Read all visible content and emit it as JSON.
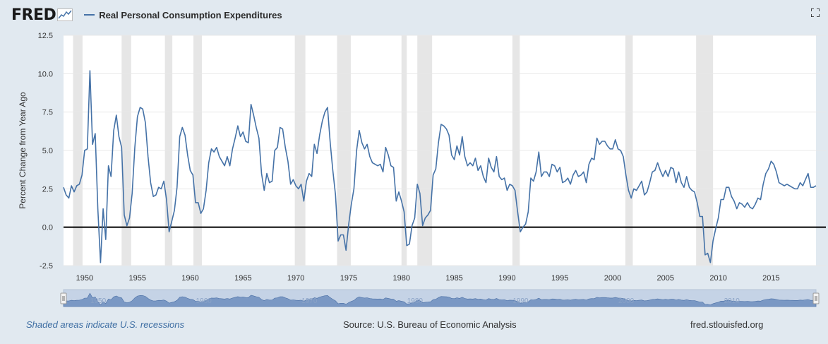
{
  "header": {
    "logo_text": "FRED",
    "series_name": "Real Personal Consumption Expenditures"
  },
  "footer": {
    "recession_note": "Shaded areas indicate U.S. recessions",
    "source": "Source: U.S. Bureau of Economic Analysis",
    "site": "fred.stlouisfed.org"
  },
  "colors": {
    "series": "#4572a7",
    "recession": "#e6e6e6",
    "zero_line": "#000000",
    "navigator": "#7a98c4",
    "navigator_bg": "#c5d3e6"
  },
  "icons": {
    "expand": "expand-icon",
    "logo_graph": "line-graph-icon"
  },
  "chart_data": {
    "type": "line",
    "title": "Real Personal Consumption Expenditures",
    "ylabel": "Percent Change from Year Ago",
    "xlabel": "",
    "xlim": [
      1948.0,
      2019.25
    ],
    "ylim": [
      -2.5,
      12.5
    ],
    "y_ticks": [
      -2.5,
      0.0,
      2.5,
      5.0,
      7.5,
      10.0,
      12.5
    ],
    "y_tick_labels": [
      "-2.5",
      "0.0",
      "2.5",
      "5.0",
      "7.5",
      "10.0",
      "12.5"
    ],
    "x_ticks": [
      1950,
      1955,
      1960,
      1965,
      1970,
      1975,
      1980,
      1985,
      1990,
      1995,
      2000,
      2005,
      2010,
      2015
    ],
    "x_tick_labels": [
      "1950",
      "1955",
      "1960",
      "1965",
      "1970",
      "1975",
      "1980",
      "1985",
      "1990",
      "1995",
      "2000",
      "2005",
      "2010",
      "2015"
    ],
    "navigator_labels": [
      "1950",
      "1960",
      "1970",
      "1980",
      "1990",
      "2000",
      "2010"
    ],
    "grid": "horizontal",
    "recessions": [
      [
        1948.9,
        1949.8
      ],
      [
        1953.5,
        1954.4
      ],
      [
        1957.6,
        1958.3
      ],
      [
        1960.3,
        1961.1
      ],
      [
        1969.9,
        1970.9
      ],
      [
        1973.9,
        1975.2
      ],
      [
        1980.0,
        1980.5
      ],
      [
        1981.5,
        1982.9
      ],
      [
        1990.5,
        1991.2
      ],
      [
        2001.2,
        2001.9
      ],
      [
        2007.9,
        2009.5
      ]
    ],
    "series": [
      {
        "name": "Real Personal Consumption Expenditures",
        "x": [
          1948.0,
          1948.25,
          1948.5,
          1948.75,
          1949.0,
          1949.25,
          1949.5,
          1949.75,
          1950.0,
          1950.25,
          1950.5,
          1950.75,
          1951.0,
          1951.25,
          1951.5,
          1951.75,
          1952.0,
          1952.25,
          1952.5,
          1952.75,
          1953.0,
          1953.25,
          1953.5,
          1953.75,
          1954.0,
          1954.25,
          1954.5,
          1954.75,
          1955.0,
          1955.25,
          1955.5,
          1955.75,
          1956.0,
          1956.25,
          1956.5,
          1956.75,
          1957.0,
          1957.25,
          1957.5,
          1957.75,
          1958.0,
          1958.25,
          1958.5,
          1958.75,
          1959.0,
          1959.25,
          1959.5,
          1959.75,
          1960.0,
          1960.25,
          1960.5,
          1960.75,
          1961.0,
          1961.25,
          1961.5,
          1961.75,
          1962.0,
          1962.25,
          1962.5,
          1962.75,
          1963.0,
          1963.25,
          1963.5,
          1963.75,
          1964.0,
          1964.25,
          1964.5,
          1964.75,
          1965.0,
          1965.25,
          1965.5,
          1965.75,
          1966.0,
          1966.25,
          1966.5,
          1966.75,
          1967.0,
          1967.25,
          1967.5,
          1967.75,
          1968.0,
          1968.25,
          1968.5,
          1968.75,
          1969.0,
          1969.25,
          1969.5,
          1969.75,
          1970.0,
          1970.25,
          1970.5,
          1970.75,
          1971.0,
          1971.25,
          1971.5,
          1971.75,
          1972.0,
          1972.25,
          1972.5,
          1972.75,
          1973.0,
          1973.25,
          1973.5,
          1973.75,
          1974.0,
          1974.25,
          1974.5,
          1974.75,
          1975.0,
          1975.25,
          1975.5,
          1975.75,
          1976.0,
          1976.25,
          1976.5,
          1976.75,
          1977.0,
          1977.25,
          1977.5,
          1977.75,
          1978.0,
          1978.25,
          1978.5,
          1978.75,
          1979.0,
          1979.25,
          1979.5,
          1979.75,
          1980.0,
          1980.25,
          1980.5,
          1980.75,
          1981.0,
          1981.25,
          1981.5,
          1981.75,
          1982.0,
          1982.25,
          1982.5,
          1982.75,
          1983.0,
          1983.25,
          1983.5,
          1983.75,
          1984.0,
          1984.25,
          1984.5,
          1984.75,
          1985.0,
          1985.25,
          1985.5,
          1985.75,
          1986.0,
          1986.25,
          1986.5,
          1986.75,
          1987.0,
          1987.25,
          1987.5,
          1987.75,
          1988.0,
          1988.25,
          1988.5,
          1988.75,
          1989.0,
          1989.25,
          1989.5,
          1989.75,
          1990.0,
          1990.25,
          1990.5,
          1990.75,
          1991.0,
          1991.25,
          1991.5,
          1991.75,
          1992.0,
          1992.25,
          1992.5,
          1992.75,
          1993.0,
          1993.25,
          1993.5,
          1993.75,
          1994.0,
          1994.25,
          1994.5,
          1994.75,
          1995.0,
          1995.25,
          1995.5,
          1995.75,
          1996.0,
          1996.25,
          1996.5,
          1996.75,
          1997.0,
          1997.25,
          1997.5,
          1997.75,
          1998.0,
          1998.25,
          1998.5,
          1998.75,
          1999.0,
          1999.25,
          1999.5,
          1999.75,
          2000.0,
          2000.25,
          2000.5,
          2000.75,
          2001.0,
          2001.25,
          2001.5,
          2001.75,
          2002.0,
          2002.25,
          2002.5,
          2002.75,
          2003.0,
          2003.25,
          2003.5,
          2003.75,
          2004.0,
          2004.25,
          2004.5,
          2004.75,
          2005.0,
          2005.25,
          2005.5,
          2005.75,
          2006.0,
          2006.25,
          2006.5,
          2006.75,
          2007.0,
          2007.25,
          2007.5,
          2007.75,
          2008.0,
          2008.25,
          2008.5,
          2008.75,
          2009.0,
          2009.25,
          2009.5,
          2009.75,
          2010.0,
          2010.25,
          2010.5,
          2010.75,
          2011.0,
          2011.25,
          2011.5,
          2011.75,
          2012.0,
          2012.25,
          2012.5,
          2012.75,
          2013.0,
          2013.25,
          2013.5,
          2013.75,
          2014.0,
          2014.25,
          2014.5,
          2014.75,
          2015.0,
          2015.25,
          2015.5,
          2015.75,
          2016.0,
          2016.25,
          2016.5,
          2016.75,
          2017.0,
          2017.25,
          2017.5,
          2017.75,
          2018.0,
          2018.25,
          2018.5,
          2018.75,
          2019.0,
          2019.25
        ],
        "values": [
          2.6,
          2.1,
          1.9,
          2.7,
          2.3,
          2.7,
          2.8,
          3.4,
          5.0,
          5.1,
          10.2,
          5.4,
          6.1,
          1.2,
          -2.3,
          1.2,
          -0.8,
          4.0,
          3.3,
          6.3,
          7.3,
          5.9,
          5.2,
          0.8,
          0.1,
          0.6,
          2.2,
          5.2,
          7.2,
          7.8,
          7.7,
          6.8,
          4.6,
          2.9,
          2.0,
          2.1,
          2.6,
          2.5,
          3.0,
          1.8,
          -0.3,
          0.4,
          1.1,
          2.6,
          5.9,
          6.5,
          6.0,
          4.7,
          3.7,
          3.4,
          1.6,
          1.6,
          0.9,
          1.2,
          2.4,
          4.2,
          5.1,
          4.9,
          5.2,
          4.6,
          4.3,
          4.0,
          4.6,
          4.0,
          5.1,
          5.8,
          6.6,
          5.9,
          6.2,
          5.6,
          5.5,
          8.0,
          7.3,
          6.5,
          5.8,
          3.5,
          2.4,
          3.5,
          2.9,
          3.0,
          5.0,
          5.2,
          6.5,
          6.4,
          5.2,
          4.3,
          2.8,
          3.1,
          2.7,
          2.5,
          2.8,
          1.7,
          3.0,
          3.5,
          3.3,
          5.4,
          4.8,
          6.0,
          6.9,
          7.5,
          7.8,
          5.5,
          3.7,
          2.1,
          -0.9,
          -0.5,
          -0.5,
          -1.5,
          0.2,
          1.5,
          2.5,
          5.0,
          6.3,
          5.5,
          5.1,
          5.4,
          4.6,
          4.2,
          4.1,
          4.0,
          4.1,
          3.6,
          5.2,
          4.7,
          4.0,
          3.9,
          1.7,
          2.3,
          1.7,
          1.0,
          -1.2,
          -1.1,
          0.1,
          0.6,
          2.8,
          2.2,
          0.1,
          0.6,
          0.8,
          1.1,
          3.4,
          3.8,
          5.5,
          6.7,
          6.6,
          6.4,
          6.0,
          4.7,
          4.4,
          5.3,
          4.7,
          5.9,
          4.6,
          4.0,
          4.2,
          4.0,
          4.5,
          3.7,
          4.0,
          3.3,
          2.9,
          4.5,
          3.9,
          3.6,
          4.6,
          3.3,
          3.1,
          3.2,
          2.4,
          2.8,
          2.7,
          2.4,
          1.0,
          -0.3,
          0.0,
          0.2,
          1.0,
          3.2,
          3.0,
          3.6,
          4.9,
          3.3,
          3.6,
          3.6,
          3.3,
          4.1,
          4.0,
          3.6,
          3.9,
          2.9,
          3.0,
          3.2,
          2.8,
          3.4,
          3.7,
          3.3,
          3.4,
          3.6,
          2.9,
          4.1,
          4.5,
          4.4,
          5.8,
          5.4,
          5.6,
          5.6,
          5.3,
          5.1,
          5.1,
          5.7,
          5.1,
          5.0,
          4.6,
          3.4,
          2.4,
          1.9,
          2.5,
          2.4,
          2.7,
          3.0,
          2.1,
          2.3,
          2.9,
          3.6,
          3.7,
          4.2,
          3.7,
          3.3,
          3.7,
          3.3,
          3.9,
          3.8,
          2.9,
          3.6,
          2.9,
          2.6,
          3.3,
          2.6,
          2.4,
          2.3,
          1.6,
          0.7,
          0.7,
          -1.8,
          -1.7,
          -2.3,
          -0.9,
          -0.1,
          0.6,
          1.8,
          1.8,
          2.6,
          2.6,
          2.0,
          1.7,
          1.2,
          1.6,
          1.5,
          1.3,
          1.6,
          1.3,
          1.2,
          1.5,
          1.9,
          1.8,
          2.8,
          3.5,
          3.8,
          4.3,
          4.1,
          3.6,
          2.9,
          2.8,
          2.7,
          2.8,
          2.7,
          2.6,
          2.5,
          2.5,
          2.9,
          2.7,
          3.1,
          3.5,
          2.6,
          2.6,
          2.7
        ]
      }
    ]
  }
}
